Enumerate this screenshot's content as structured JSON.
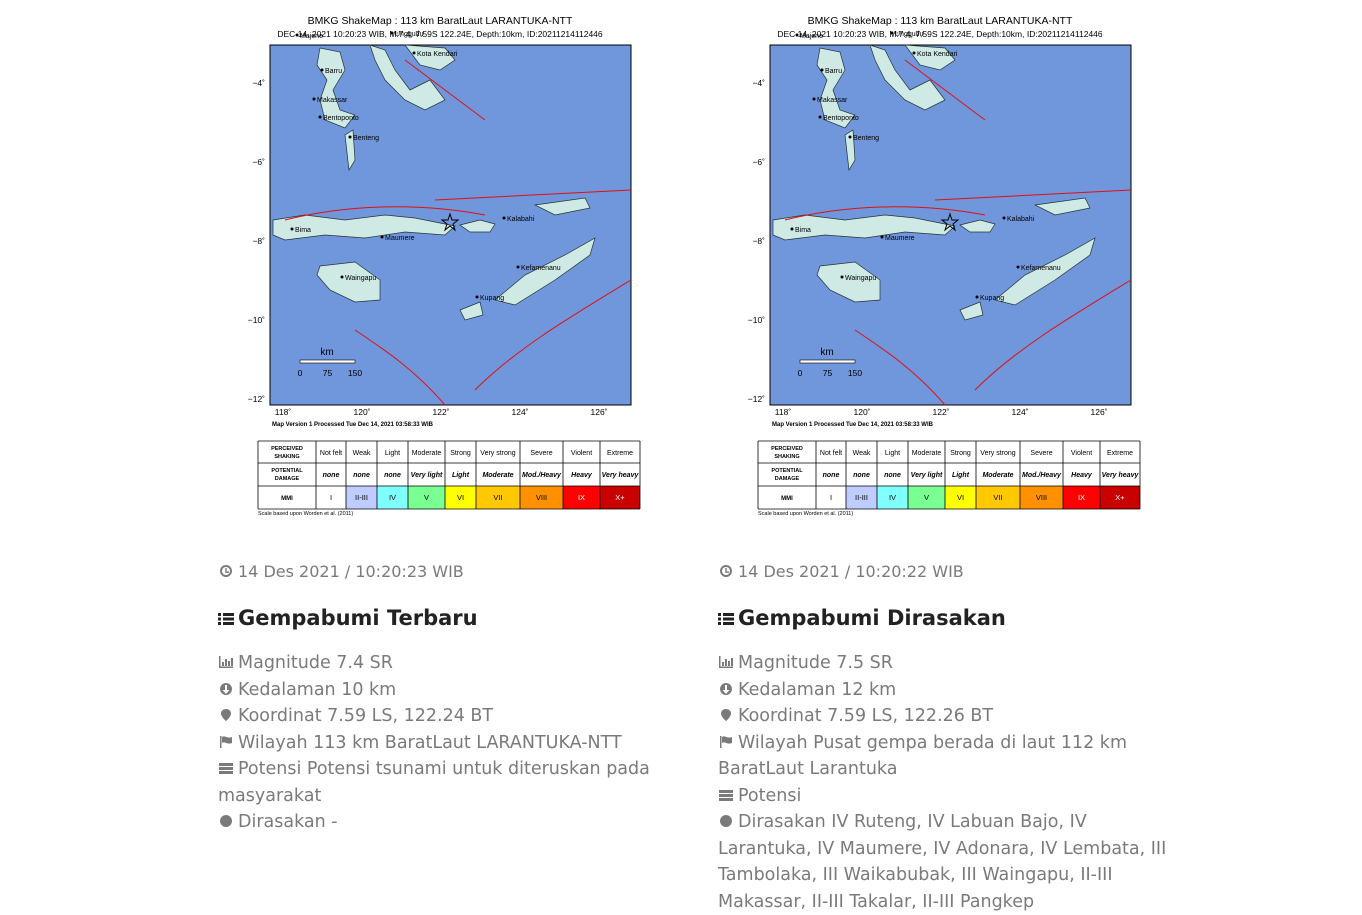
{
  "shakemap": {
    "title": "BMKG ShakeMap : 113 km BaratLaut LARANTUKA-NTT",
    "subtitle": "DEC 14, 2021 10:20:23 WIB, M:7.4, 7.59S 122.24E, Depth:10km, ID:20211214112446",
    "lat_ticks": [
      "−4˚",
      "−6˚",
      "−8˚",
      "−10˚",
      "−12˚"
    ],
    "lon_ticks": [
      "118˚",
      "120˚",
      "122˚",
      "124˚",
      "126˚"
    ],
    "places": [
      "Majene",
      "Unggudu",
      "Kota Kendari",
      "Barru",
      "Makassar",
      "Bentoponto",
      "Benteng",
      "Bima",
      "Maumere",
      "Kalabahi",
      "Waingapu",
      "Kefamenanu",
      "Kupang"
    ],
    "scale_title": "km",
    "scale_ticks": [
      "0",
      "75",
      "150"
    ],
    "version": "Map Version 1 Processed Tue Dec 14, 2021 03:58:33 WIB",
    "legend": {
      "row_labels": [
        "PERCEIVED SHAKING",
        "POTENTIAL DAMAGE",
        "MMI"
      ],
      "shaking": [
        "Not felt",
        "Weak",
        "Light",
        "Moderate",
        "Strong",
        "Very strong",
        "Severe",
        "Violent",
        "Extreme"
      ],
      "damage": [
        "none",
        "none",
        "none",
        "Very light",
        "Light",
        "Moderate",
        "Mod./Heavy",
        "Heavy",
        "Very heavy"
      ],
      "mmi": [
        "I",
        "II-III",
        "IV",
        "V",
        "VI",
        "VII",
        "VIII",
        "IX",
        "X+"
      ],
      "colors": [
        "#ffffff",
        "#bfccff",
        "#80ffff",
        "#7aff93",
        "#ffff00",
        "#ffc800",
        "#ff9100",
        "#ff0000",
        "#c80000"
      ]
    },
    "note": "Scale based upon Worden et al. (2011)"
  },
  "panels": [
    {
      "time": "14 Des 2021 / 10:20:23 WIB",
      "heading": "Gempabumi Terbaru",
      "items": [
        "Magnitude 7.4 SR",
        "Kedalaman 10 km",
        "Koordinat 7.59 LS, 122.24 BT",
        "Wilayah 113 km BaratLaut LARANTUKA-NTT",
        "Potensi Potensi tsunami untuk diteruskan pada masyarakat",
        "Dirasakan -"
      ]
    },
    {
      "time": "14 Des 2021 / 10:20:22 WIB",
      "heading": "Gempabumi Dirasakan",
      "items": [
        "Magnitude 7.5 SR",
        "Kedalaman 12 km",
        "Koordinat 7.59 LS, 122.26 BT",
        "Wilayah Pusat gempa berada di laut 112 km BaratLaut Larantuka",
        "Potensi",
        "Dirasakan IV Ruteng, IV Labuan Bajo, IV Larantuka, IV Maumere, IV Adonara, IV Lembata, III Tambolaka, III Waikabubak, III Waingapu, II-III Makassar, II-III Takalar, II-III Pangkep"
      ]
    }
  ]
}
